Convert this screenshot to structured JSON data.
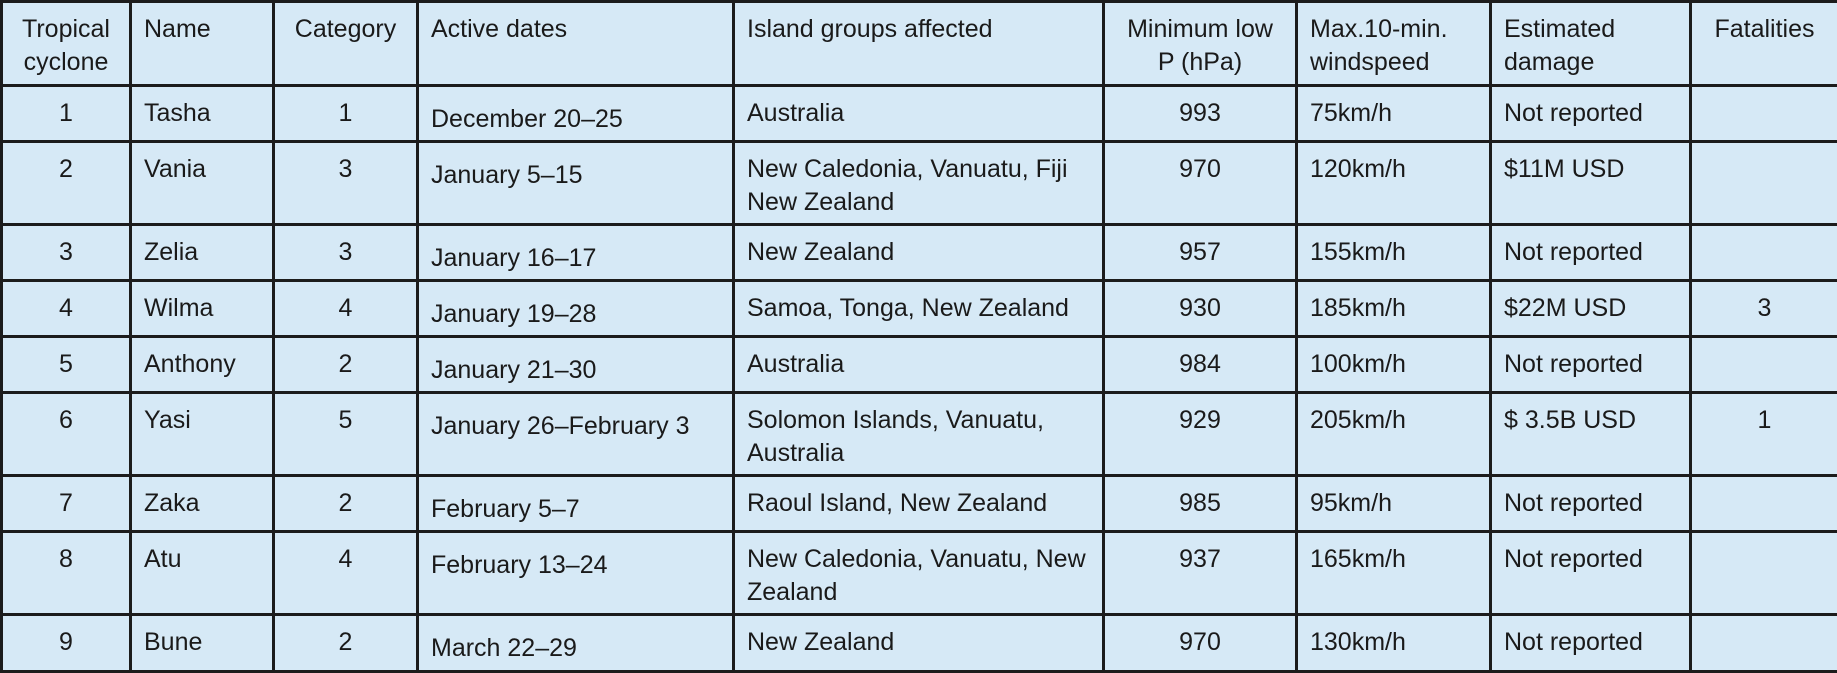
{
  "table": {
    "headers": [
      "Tropical cyclone",
      "Name",
      "Category",
      "Active dates",
      "Island groups affected",
      "Minimum low P (hPa)",
      "Max.10-min. windspeed",
      "Estimated damage",
      "Fatalities"
    ],
    "rows": [
      {
        "cyclone": 1,
        "name": "Tasha",
        "category": 1,
        "dates": "December 20–25",
        "islands": "Australia",
        "pressure": 993,
        "wind": "75km/h",
        "damage": "Not reported"
      },
      {
        "cyclone": 2,
        "name": "Vania",
        "category": 3,
        "dates": "January 5–15",
        "islands": "New Caledonia, Vanuatu, Fiji New Zealand",
        "pressure": 970,
        "wind": "120km/h",
        "damage": "$11M USD"
      },
      {
        "cyclone": 3,
        "name": "Zelia",
        "category": 3,
        "dates": "January 16–17",
        "islands": "New Zealand",
        "pressure": 957,
        "wind": "155km/h",
        "damage": "Not reported"
      },
      {
        "cyclone": 4,
        "name": "Wilma",
        "category": 4,
        "dates": "January 19–28",
        "islands": "Samoa, Tonga, New Zealand",
        "pressure": 930,
        "wind": "185km/h",
        "damage": "$22M USD",
        "fatalities": 3
      },
      {
        "cyclone": 5,
        "name": "Anthony",
        "category": 2,
        "dates": "January 21–30",
        "islands": "Australia",
        "pressure": 984,
        "wind": "100km/h",
        "damage": "Not reported"
      },
      {
        "cyclone": 6,
        "name": "Yasi",
        "category": 5,
        "dates": "January 26–February 3",
        "islands": "Solomon Islands, Vanuatu, Australia",
        "pressure": 929,
        "wind": "205km/h",
        "damage": "$ 3.5B USD",
        "fatalities": 1
      },
      {
        "cyclone": 7,
        "name": "Zaka",
        "category": 2,
        "dates": "February 5–7",
        "islands": "Raoul Island, New Zealand",
        "pressure": 985,
        "wind": "95km/h",
        "damage": "Not reported"
      },
      {
        "cyclone": 8,
        "name": "Atu",
        "category": 4,
        "dates": "February 13–24",
        "islands": "New Caledonia, Vanuatu, New Zealand",
        "pressure": 937,
        "wind": "165km/h",
        "damage": "Not reported"
      },
      {
        "cyclone": 9,
        "name": "Bune",
        "category": 2,
        "dates": "March 22–29",
        "islands": "New Zealand",
        "pressure": 970,
        "wind": "130km/h",
        "damage": "Not reported"
      }
    ]
  }
}
